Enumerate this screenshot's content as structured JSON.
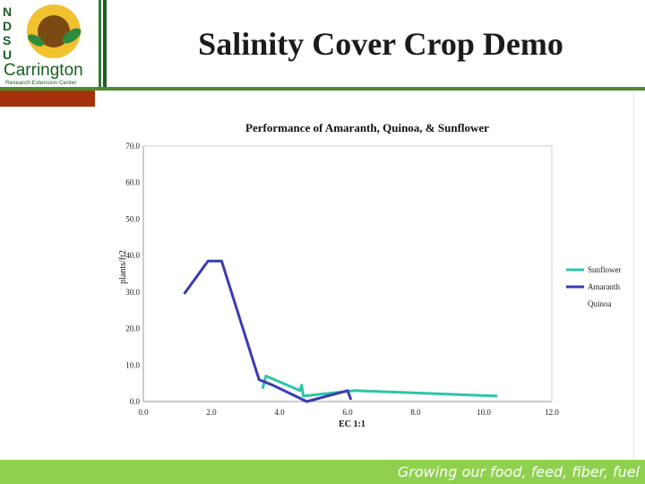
{
  "slide": {
    "title": "Salinity Cover Crop Demo",
    "tagline": "Growing our food, feed, fiber, fuel",
    "logo": {
      "letters": [
        "N",
        "D",
        "S",
        "U"
      ],
      "name": "Carrington",
      "subtitle": "Research Extension Center"
    }
  },
  "colors": {
    "band_green": "#8fd14f",
    "dark_green": "#1b5e20",
    "rust": "#a3320b",
    "sunflower": "#2ec4a6",
    "amaranth": "#3b3bb0"
  },
  "chart_data": {
    "type": "line",
    "title": "Performance of Amaranth, Quinoa, & Sunflower",
    "xlabel": "EC 1:1",
    "ylabel": "plants/ft2",
    "xlim": [
      0,
      12
    ],
    "ylim": [
      0,
      70
    ],
    "x_ticks": [
      "0.0",
      "2.0",
      "4.0",
      "6.0",
      "8.0",
      "10.0",
      "12.0"
    ],
    "y_ticks": [
      "0.0",
      "10.0",
      "20.0",
      "30.0",
      "40.0",
      "50.0",
      "60.0",
      "70.0"
    ],
    "grid": false,
    "legend_position": "right",
    "series": [
      {
        "name": "Sunflower",
        "color": "#2ec4a6",
        "points": [
          [
            3.5,
            3.5
          ],
          [
            3.6,
            7.0
          ],
          [
            4.6,
            3.0
          ],
          [
            4.65,
            4.5
          ],
          [
            4.7,
            1.5
          ],
          [
            6.2,
            3.0
          ],
          [
            10.4,
            1.5
          ]
        ]
      },
      {
        "name": "Amaranth",
        "color": "#3b3bb0",
        "points": [
          [
            1.2,
            29.5
          ],
          [
            1.9,
            38.5
          ],
          [
            2.3,
            38.5
          ],
          [
            3.4,
            6.0
          ],
          [
            3.8,
            4.5
          ],
          [
            4.8,
            0.0
          ],
          [
            6.0,
            3.0
          ],
          [
            6.1,
            0.5
          ]
        ]
      },
      {
        "name": "Quinoa",
        "color": "#888888",
        "points": []
      }
    ]
  }
}
